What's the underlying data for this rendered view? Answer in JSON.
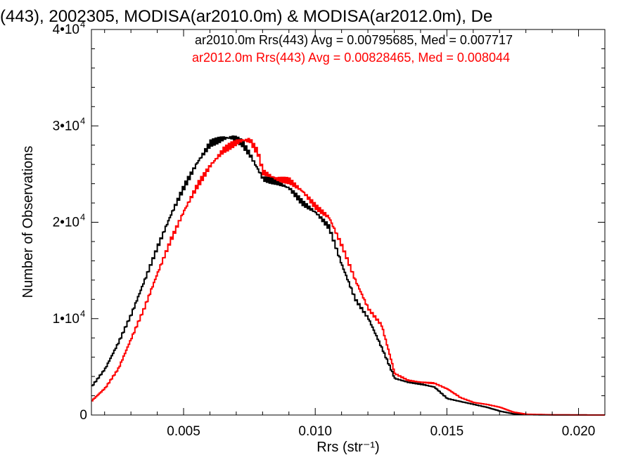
{
  "chart_data": {
    "type": "line",
    "title": "(443), 2002305, MODISA(ar2010.0m) & MODISA(ar2012.0m), De",
    "xlabel": "Rrs (str⁻¹)",
    "ylabel": "Number of Observations",
    "xlim": [
      0.0015,
      0.021
    ],
    "ylim": [
      0,
      40000
    ],
    "x_ticks": [
      {
        "value": 0.005,
        "label": "0.005"
      },
      {
        "value": 0.01,
        "label": "0.010"
      },
      {
        "value": 0.015,
        "label": "0.015"
      },
      {
        "value": 0.02,
        "label": "0.020"
      }
    ],
    "y_ticks": [
      {
        "value": 0,
        "label": "0"
      },
      {
        "value": 10000,
        "label": "1•10",
        "exp": "4"
      },
      {
        "value": 20000,
        "label": "2•10",
        "exp": "4"
      },
      {
        "value": 30000,
        "label": "3•10",
        "exp": "4"
      },
      {
        "value": 40000,
        "label": "4•10",
        "exp": "4"
      }
    ],
    "grid": false,
    "legend_position": "top-right",
    "annotations": [
      "ar2010.0m Rrs(443) Avg = 0.00795685, Med = 0.007717",
      "ar2012.0m Rrs(443) Avg = 0.00828465, Med = 0.008044"
    ],
    "series": [
      {
        "color": "#000000",
        "x": [
          0.0015,
          0.002,
          0.0025,
          0.003,
          0.0035,
          0.004,
          0.0045,
          0.005,
          0.0055,
          0.006,
          0.0063,
          0.0065,
          0.0068,
          0.007,
          0.0072,
          0.0075,
          0.008,
          0.0085,
          0.009,
          0.0095,
          0.01,
          0.0105,
          0.011,
          0.0115,
          0.012,
          0.0125,
          0.013,
          0.0135,
          0.014,
          0.0145,
          0.015,
          0.0155,
          0.016,
          0.0165,
          0.017,
          0.0175,
          0.018,
          0.019,
          0.02,
          0.021
        ],
        "y": [
          3000,
          4800,
          7500,
          10500,
          14000,
          17500,
          20800,
          23700,
          26200,
          28200,
          28500,
          28700,
          28800,
          28600,
          28200,
          27000,
          24500,
          24200,
          23500,
          22000,
          21000,
          19500,
          15500,
          12000,
          10000,
          7000,
          3800,
          3400,
          3200,
          2900,
          1700,
          1400,
          1100,
          800,
          400,
          120,
          40,
          10,
          5,
          0
        ]
      },
      {
        "color": "#ff0000",
        "x": [
          0.0015,
          0.002,
          0.0025,
          0.003,
          0.0035,
          0.004,
          0.0045,
          0.005,
          0.0055,
          0.006,
          0.0065,
          0.0068,
          0.007,
          0.0072,
          0.0075,
          0.0078,
          0.008,
          0.0085,
          0.009,
          0.0095,
          0.01,
          0.0105,
          0.011,
          0.0115,
          0.012,
          0.0125,
          0.013,
          0.0135,
          0.014,
          0.0145,
          0.015,
          0.0155,
          0.016,
          0.0165,
          0.017,
          0.0175,
          0.018,
          0.019,
          0.02,
          0.021
        ],
        "y": [
          1500,
          2800,
          4800,
          8000,
          11200,
          14800,
          18200,
          21200,
          23800,
          25900,
          27500,
          28000,
          28300,
          28500,
          28500,
          27200,
          25200,
          24500,
          24300,
          23200,
          21600,
          20500,
          17500,
          14000,
          11000,
          9300,
          4300,
          3600,
          3400,
          3300,
          2700,
          1800,
          1300,
          1100,
          800,
          300,
          80,
          20,
          5,
          0
        ]
      }
    ]
  }
}
